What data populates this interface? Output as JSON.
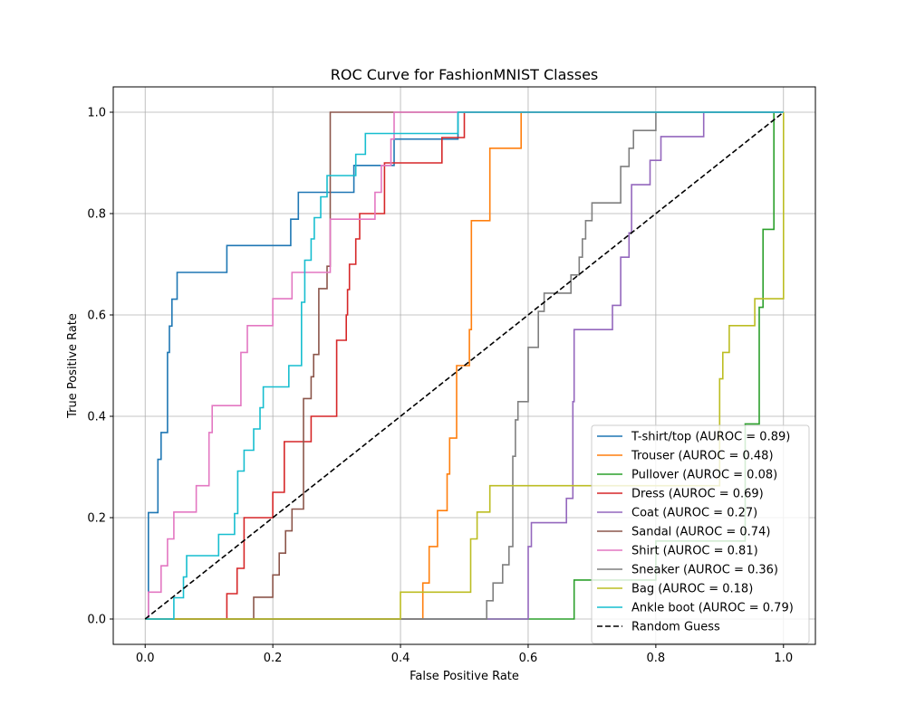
{
  "chart_data": {
    "type": "line",
    "title": "ROC Curve for FashionMNIST Classes",
    "xlabel": "False Positive Rate",
    "ylabel": "True Positive Rate",
    "xlim": [
      -0.05,
      1.05
    ],
    "ylim": [
      -0.05,
      1.05
    ],
    "xticks": [
      "0.0",
      "0.2",
      "0.4",
      "0.6",
      "0.8",
      "1.0"
    ],
    "yticks": [
      "0.0",
      "0.2",
      "0.4",
      "0.6",
      "0.8",
      "1.0"
    ],
    "grid": true,
    "legend_position": "lower-right",
    "series": [
      {
        "name": "T-shirt/top (AUROC = 0.89)",
        "color": "#1f77b4",
        "x": [
          0,
          0.005,
          0.005,
          0.02,
          0.02,
          0.025,
          0.025,
          0.035,
          0.035,
          0.038,
          0.038,
          0.042,
          0.042,
          0.05,
          0.05,
          0.062,
          0.062,
          0.128,
          0.128,
          0.228,
          0.228,
          0.24,
          0.24,
          0.3,
          0.3,
          0.327,
          0.327,
          0.39,
          0.39,
          0.48,
          0.48,
          0.49,
          0.49,
          1.0
        ],
        "y": [
          0,
          0,
          0.21,
          0.21,
          0.315,
          0.315,
          0.368,
          0.368,
          0.526,
          0.526,
          0.578,
          0.578,
          0.631,
          0.631,
          0.684,
          0.684,
          0.684,
          0.684,
          0.737,
          0.737,
          0.789,
          0.789,
          0.842,
          0.842,
          0.842,
          0.842,
          0.895,
          0.895,
          0.947,
          0.947,
          0.947,
          0.947,
          1.0,
          1.0
        ]
      },
      {
        "name": "Trouser (AUROC = 0.48)",
        "color": "#ff7f0e",
        "x": [
          0,
          0.435,
          0.435,
          0.445,
          0.445,
          0.458,
          0.458,
          0.473,
          0.473,
          0.477,
          0.477,
          0.488,
          0.488,
          0.508,
          0.508,
          0.511,
          0.511,
          0.54,
          0.54,
          0.585,
          0.585,
          0.589,
          0.589,
          0.59,
          0.59,
          1.0
        ],
        "y": [
          0,
          0,
          0.071,
          0.071,
          0.143,
          0.143,
          0.214,
          0.214,
          0.286,
          0.286,
          0.357,
          0.357,
          0.5,
          0.5,
          0.571,
          0.571,
          0.786,
          0.786,
          0.929,
          0.929,
          0.929,
          0.929,
          1.0,
          1.0,
          1.0,
          1.0
        ]
      },
      {
        "name": "Pullover (AUROC = 0.08)",
        "color": "#2ca02c",
        "x": [
          0,
          0.672,
          0.672,
          0.8,
          0.8,
          0.94,
          0.94,
          0.962,
          0.962,
          0.968,
          0.968,
          0.975,
          0.975,
          0.985,
          0.985,
          1.0
        ],
        "y": [
          0,
          0,
          0.077,
          0.077,
          0.154,
          0.154,
          0.385,
          0.385,
          0.615,
          0.615,
          0.769,
          0.769,
          0.769,
          0.769,
          1.0,
          1.0
        ]
      },
      {
        "name": "Dress (AUROC = 0.69)",
        "color": "#d62728",
        "x": [
          0,
          0.128,
          0.128,
          0.144,
          0.144,
          0.155,
          0.155,
          0.175,
          0.175,
          0.2,
          0.2,
          0.218,
          0.218,
          0.26,
          0.26,
          0.3,
          0.3,
          0.315,
          0.315,
          0.317,
          0.317,
          0.32,
          0.32,
          0.33,
          0.33,
          0.336,
          0.336,
          0.346,
          0.346,
          0.359,
          0.359,
          0.375,
          0.375,
          0.45,
          0.45,
          0.465,
          0.465,
          0.48,
          0.48,
          0.5,
          0.5,
          0.536,
          0.536,
          1.0
        ],
        "y": [
          0,
          0,
          0.05,
          0.05,
          0.1,
          0.1,
          0.2,
          0.2,
          0.2,
          0.2,
          0.25,
          0.25,
          0.35,
          0.35,
          0.4,
          0.4,
          0.55,
          0.55,
          0.6,
          0.6,
          0.65,
          0.65,
          0.7,
          0.7,
          0.75,
          0.75,
          0.8,
          0.8,
          0.8,
          0.8,
          0.8,
          0.8,
          0.9,
          0.9,
          0.9,
          0.9,
          0.95,
          0.95,
          0.95,
          0.95,
          1.0,
          1.0,
          1.0,
          1.0
        ]
      },
      {
        "name": "Coat (AUROC = 0.27)",
        "color": "#9467bd",
        "x": [
          0,
          0.6,
          0.6,
          0.605,
          0.605,
          0.655,
          0.655,
          0.66,
          0.66,
          0.67,
          0.67,
          0.672,
          0.672,
          0.7,
          0.7,
          0.732,
          0.732,
          0.745,
          0.745,
          0.75,
          0.75,
          0.758,
          0.758,
          0.762,
          0.762,
          0.791,
          0.791,
          0.8,
          0.8,
          0.804,
          0.804,
          0.808,
          0.808,
          0.875,
          0.875,
          0.895,
          0.895,
          1.0
        ],
        "y": [
          0,
          0,
          0.143,
          0.143,
          0.19,
          0.19,
          0.19,
          0.19,
          0.238,
          0.238,
          0.429,
          0.429,
          0.571,
          0.571,
          0.571,
          0.571,
          0.619,
          0.619,
          0.714,
          0.714,
          0.714,
          0.714,
          0.762,
          0.762,
          0.857,
          0.857,
          0.905,
          0.905,
          0.905,
          0.905,
          0.905,
          0.905,
          0.952,
          0.952,
          1.0,
          1.0,
          1.0,
          1.0
        ]
      },
      {
        "name": "Sandal (AUROC = 0.74)",
        "color": "#8c564b",
        "x": [
          0,
          0.17,
          0.17,
          0.2,
          0.2,
          0.21,
          0.21,
          0.22,
          0.22,
          0.23,
          0.23,
          0.248,
          0.248,
          0.26,
          0.26,
          0.264,
          0.264,
          0.272,
          0.272,
          0.285,
          0.285,
          0.29,
          0.29,
          0.3,
          0.3,
          0.31,
          0.31,
          0.33,
          0.33,
          1.0
        ],
        "y": [
          0,
          0,
          0.043,
          0.043,
          0.087,
          0.087,
          0.13,
          0.13,
          0.174,
          0.174,
          0.217,
          0.217,
          0.435,
          0.435,
          0.478,
          0.478,
          0.522,
          0.522,
          0.652,
          0.652,
          0.696,
          0.696,
          1.0,
          1.0,
          1.0,
          1.0,
          1.0,
          1.0,
          1.0,
          1.0
        ]
      },
      {
        "name": "Shirt (AUROC = 0.81)",
        "color": "#e377c2",
        "x": [
          0,
          0.005,
          0.005,
          0.025,
          0.025,
          0.035,
          0.035,
          0.045,
          0.045,
          0.05,
          0.05,
          0.08,
          0.08,
          0.1,
          0.1,
          0.105,
          0.105,
          0.125,
          0.125,
          0.15,
          0.15,
          0.16,
          0.16,
          0.2,
          0.2,
          0.23,
          0.23,
          0.235,
          0.235,
          0.265,
          0.265,
          0.29,
          0.29,
          0.333,
          0.333,
          0.36,
          0.36,
          0.37,
          0.37,
          0.385,
          0.385,
          0.39,
          0.39,
          0.41,
          0.41,
          0.445,
          0.445,
          1.0
        ],
        "y": [
          0,
          0,
          0.053,
          0.053,
          0.105,
          0.105,
          0.158,
          0.158,
          0.211,
          0.211,
          0.211,
          0.211,
          0.263,
          0.263,
          0.368,
          0.368,
          0.421,
          0.421,
          0.421,
          0.421,
          0.526,
          0.526,
          0.579,
          0.579,
          0.632,
          0.632,
          0.684,
          0.684,
          0.684,
          0.684,
          0.684,
          0.684,
          0.789,
          0.789,
          0.789,
          0.789,
          0.842,
          0.842,
          0.895,
          0.895,
          0.947,
          0.947,
          1.0,
          1.0,
          1.0,
          1.0,
          1.0,
          1.0
        ]
      },
      {
        "name": "Sneaker (AUROC = 0.36)",
        "color": "#7f7f7f",
        "x": [
          0,
          0.535,
          0.535,
          0.545,
          0.545,
          0.56,
          0.56,
          0.57,
          0.57,
          0.576,
          0.576,
          0.58,
          0.58,
          0.584,
          0.584,
          0.6,
          0.6,
          0.616,
          0.616,
          0.625,
          0.625,
          0.65,
          0.65,
          0.667,
          0.667,
          0.68,
          0.68,
          0.685,
          0.685,
          0.69,
          0.69,
          0.7,
          0.7,
          0.705,
          0.705,
          0.71,
          0.71,
          0.745,
          0.745,
          0.758,
          0.758,
          0.765,
          0.765,
          0.8,
          0.8,
          1.0
        ],
        "y": [
          0,
          0,
          0.036,
          0.036,
          0.071,
          0.071,
          0.107,
          0.107,
          0.143,
          0.143,
          0.321,
          0.321,
          0.393,
          0.393,
          0.429,
          0.429,
          0.536,
          0.536,
          0.607,
          0.607,
          0.643,
          0.643,
          0.643,
          0.643,
          0.679,
          0.679,
          0.714,
          0.714,
          0.75,
          0.75,
          0.786,
          0.786,
          0.821,
          0.821,
          0.821,
          0.821,
          0.821,
          0.821,
          0.893,
          0.893,
          0.929,
          0.929,
          0.964,
          0.964,
          1.0,
          1.0
        ]
      },
      {
        "name": "Bag (AUROC = 0.18)",
        "color": "#bcbd22",
        "x": [
          0,
          0.4,
          0.4,
          0.51,
          0.51,
          0.52,
          0.52,
          0.54,
          0.54,
          0.67,
          0.67,
          0.875,
          0.875,
          0.9,
          0.9,
          0.905,
          0.905,
          0.915,
          0.915,
          0.955,
          0.955,
          1.0,
          1.0
        ],
        "y": [
          0,
          0,
          0.053,
          0.053,
          0.158,
          0.158,
          0.211,
          0.211,
          0.263,
          0.263,
          0.263,
          0.263,
          0.263,
          0.263,
          0.474,
          0.474,
          0.526,
          0.526,
          0.579,
          0.579,
          0.632,
          0.632,
          1.0
        ]
      },
      {
        "name": "Ankle boot (AUROC = 0.79)",
        "color": "#17becf",
        "x": [
          0,
          0.045,
          0.045,
          0.06,
          0.06,
          0.065,
          0.065,
          0.115,
          0.115,
          0.14,
          0.14,
          0.145,
          0.145,
          0.155,
          0.155,
          0.17,
          0.17,
          0.18,
          0.18,
          0.185,
          0.185,
          0.19,
          0.19,
          0.225,
          0.225,
          0.245,
          0.245,
          0.25,
          0.25,
          0.26,
          0.26,
          0.265,
          0.265,
          0.275,
          0.275,
          0.285,
          0.285,
          0.3,
          0.3,
          0.33,
          0.33,
          0.345,
          0.345,
          0.365,
          0.365,
          0.415,
          0.415,
          0.49,
          0.49,
          1.0
        ],
        "y": [
          0,
          0,
          0.042,
          0.042,
          0.083,
          0.083,
          0.125,
          0.125,
          0.167,
          0.167,
          0.208,
          0.208,
          0.292,
          0.292,
          0.333,
          0.333,
          0.375,
          0.375,
          0.417,
          0.417,
          0.458,
          0.458,
          0.458,
          0.458,
          0.5,
          0.5,
          0.625,
          0.625,
          0.708,
          0.708,
          0.75,
          0.75,
          0.792,
          0.792,
          0.833,
          0.833,
          0.875,
          0.875,
          0.875,
          0.875,
          0.917,
          0.917,
          0.958,
          0.958,
          0.958,
          0.958,
          0.958,
          0.958,
          1.0,
          1.0
        ]
      },
      {
        "name": "Random Guess",
        "color": "#000000",
        "dashed": true,
        "x": [
          0,
          1
        ],
        "y": [
          0,
          1
        ]
      }
    ]
  }
}
